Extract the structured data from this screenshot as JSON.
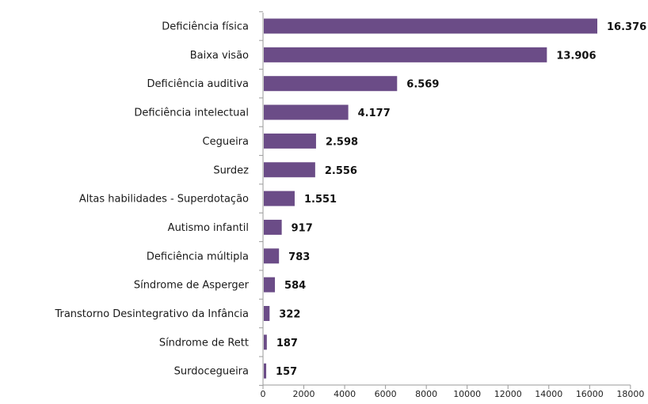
{
  "chart_data": {
    "type": "bar",
    "orientation": "horizontal",
    "categories": [
      "Deficiência física",
      "Baixa visão",
      "Deficiência auditiva",
      "Deficiência intelectual",
      "Cegueira",
      "Surdez",
      "Altas habilidades - Superdotação",
      "Autismo infantil",
      "Deficiência múltipla",
      "Síndrome de Asperger",
      "Transtorno Desintegrativo da Infância",
      "Síndrome de Rett",
      "Surdocegueira"
    ],
    "values": [
      16376,
      13906,
      6569,
      4177,
      2598,
      2556,
      1551,
      917,
      783,
      584,
      322,
      187,
      157
    ],
    "data_labels": [
      "16.376",
      "13.906",
      "6.569",
      "4.177",
      "2.598",
      "2.556",
      "1.551",
      "917",
      "783",
      "584",
      "322",
      "187",
      "157"
    ],
    "x_ticks": [
      "0",
      "2000",
      "4000",
      "6000",
      "8000",
      "10000",
      "12000",
      "14000",
      "16000",
      "18000"
    ],
    "xlim": [
      0,
      18000
    ],
    "bar_color": "#6b4c87",
    "axis_color": "#9a9a9a",
    "grid": false,
    "legend": "none",
    "title": "",
    "xlabel": "",
    "ylabel": ""
  }
}
